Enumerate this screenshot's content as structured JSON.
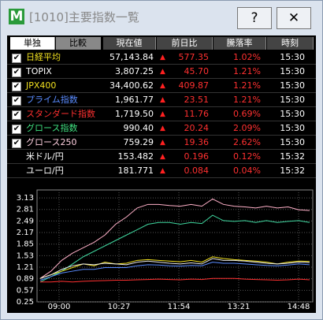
{
  "window": {
    "icon": "M",
    "title": "[1010]主要指数一覧",
    "help": "?",
    "close": "✕"
  },
  "tabs": [
    "単独",
    "比較"
  ],
  "columns": [
    "現在値",
    "前日比",
    "騰落率",
    "時刻"
  ],
  "rows": [
    {
      "checked": true,
      "name": "日経平均",
      "color": "#f0e020",
      "price": "57,143.84",
      "change": "577.35",
      "pct": "1.02%",
      "time": "15:30"
    },
    {
      "checked": true,
      "name": "TOPIX",
      "color": "#ffffff",
      "price": "3,807.25",
      "change": "45.70",
      "pct": "1.21%",
      "time": "15:30"
    },
    {
      "checked": true,
      "name": "JPX400",
      "color": "#f0e020",
      "price": "34,400.62",
      "change": "409.87",
      "pct": "1.21%",
      "time": "15:30"
    },
    {
      "checked": true,
      "name": "プライム指数",
      "color": "#5a8cff",
      "price": "1,961.77",
      "change": "23.51",
      "pct": "1.21%",
      "time": "15:30"
    },
    {
      "checked": true,
      "name": "スタンダード指数",
      "color": "#ff3030",
      "price": "1,719.50",
      "change": "11.76",
      "pct": "0.69%",
      "time": "15:30"
    },
    {
      "checked": true,
      "name": "グロース指数",
      "color": "#40e080",
      "price": "990.40",
      "change": "20.24",
      "pct": "2.09%",
      "time": "15:30"
    },
    {
      "checked": true,
      "name": "グロース250",
      "color": "#ffd0e0",
      "price": "759.29",
      "change": "19.36",
      "pct": "2.62%",
      "time": "15:30"
    },
    {
      "checked": false,
      "name": "米ドル/円",
      "color": "#ffffff",
      "price": "153.482",
      "change": "0.196",
      "pct": "0.12%",
      "time": "15:32"
    },
    {
      "checked": false,
      "name": "ユーロ/円",
      "color": "#ffffff",
      "price": "181.771",
      "change": "0.084",
      "pct": "0.04%",
      "time": "15:32"
    }
  ],
  "chart": {
    "type": "line",
    "ylim": [
      0.25,
      3.35
    ],
    "yticks": [
      0.25,
      0.57,
      0.89,
      1.21,
      1.53,
      1.85,
      2.17,
      2.49,
      2.81,
      3.13
    ],
    "xticks": [
      "09:00",
      "10:27",
      "11:54",
      "13:21",
      "14:48"
    ],
    "series": [
      {
        "color": "#ffb0c8",
        "values": [
          0.9,
          1.1,
          1.4,
          1.6,
          1.75,
          1.9,
          2.1,
          2.4,
          2.6,
          2.85,
          2.95,
          2.95,
          2.92,
          2.9,
          2.95,
          2.9,
          3.1,
          2.95,
          2.9,
          2.88,
          2.85,
          2.9,
          2.85,
          2.88,
          2.8,
          2.78
        ]
      },
      {
        "color": "#40d8a0",
        "values": [
          0.8,
          0.95,
          1.1,
          1.3,
          1.5,
          1.65,
          1.8,
          1.95,
          2.1,
          2.25,
          2.4,
          2.45,
          2.45,
          2.4,
          2.45,
          2.42,
          2.65,
          2.5,
          2.48,
          2.5,
          2.45,
          2.5,
          2.45,
          2.48,
          2.5,
          2.45
        ]
      },
      {
        "color": "#f0e020",
        "values": [
          0.9,
          1.0,
          1.1,
          1.2,
          1.3,
          1.25,
          1.35,
          1.3,
          1.32,
          1.4,
          1.42,
          1.4,
          1.38,
          1.36,
          1.4,
          1.35,
          1.5,
          1.45,
          1.42,
          1.4,
          1.38,
          1.35,
          1.3,
          1.35,
          1.38,
          1.37
        ]
      },
      {
        "color": "#e8e8e8",
        "values": [
          0.9,
          1.0,
          1.15,
          1.25,
          1.3,
          1.28,
          1.32,
          1.3,
          1.28,
          1.35,
          1.38,
          1.35,
          1.32,
          1.3,
          1.33,
          1.3,
          1.45,
          1.4,
          1.4,
          1.38,
          1.35,
          1.32,
          1.3,
          1.32,
          1.35,
          1.34
        ]
      },
      {
        "color": "#5a8cff",
        "values": [
          0.85,
          0.95,
          1.05,
          1.1,
          1.15,
          1.15,
          1.2,
          1.2,
          1.2,
          1.25,
          1.28,
          1.27,
          1.25,
          1.24,
          1.26,
          1.25,
          1.35,
          1.32,
          1.32,
          1.3,
          1.28,
          1.26,
          1.25,
          1.27,
          1.3,
          1.28
        ]
      },
      {
        "color": "#ff3030",
        "values": [
          0.8,
          0.8,
          0.82,
          0.8,
          0.82,
          0.83,
          0.84,
          0.85,
          0.85,
          0.86,
          0.87,
          0.88,
          0.87,
          0.86,
          0.88,
          0.87,
          0.9,
          0.9,
          0.9,
          0.88,
          0.87,
          0.86,
          0.85,
          0.86,
          0.88,
          0.86
        ]
      }
    ]
  }
}
